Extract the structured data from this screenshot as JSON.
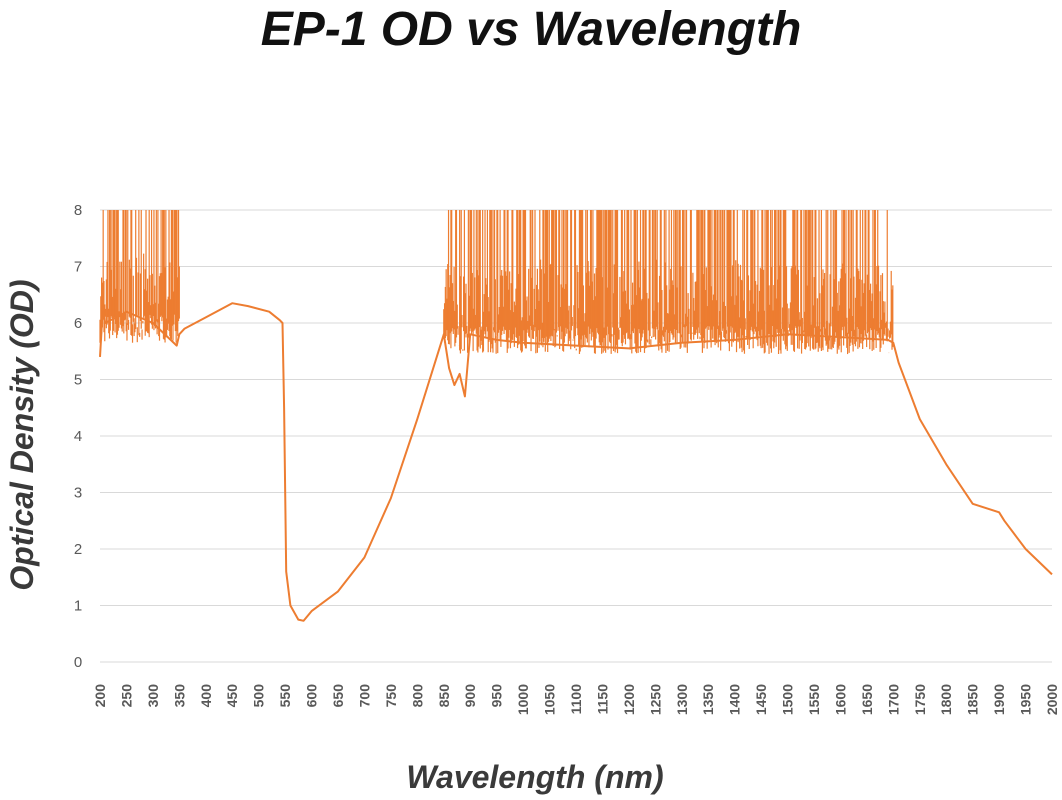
{
  "chart_data": {
    "type": "line",
    "title": "EP-1 OD vs Wavelength",
    "xlabel": "Wavelength (nm)",
    "ylabel": "Optical Density (OD)",
    "xlim": [
      200,
      2000
    ],
    "ylim": [
      0,
      8
    ],
    "x_ticks": [
      "200",
      "250",
      "300",
      "350",
      "400",
      "450",
      "500",
      "550",
      "600",
      "650",
      "700",
      "750",
      "800",
      "850",
      "900",
      "950",
      "1000",
      "1050",
      "1100",
      "1150",
      "1200",
      "1250",
      "1300",
      "1350",
      "1400",
      "1450",
      "1500",
      "1550",
      "1600",
      "1650",
      "1700",
      "1750",
      "1800",
      "1850",
      "1900",
      "1950",
      "2000"
    ],
    "y_ticks": [
      "0",
      "1",
      "2",
      "3",
      "4",
      "5",
      "6",
      "7",
      "8"
    ],
    "grid": "horizontal",
    "colors": {
      "series": "#ed7d31",
      "grid": "#d9d9d9",
      "tick_text": "#595959"
    },
    "series": [
      {
        "noise_regions": [
          {
            "x": [
              200,
              350
            ],
            "floor": 5.9,
            "spikes_to": 8
          },
          {
            "x": [
              850,
              1700
            ],
            "floor": 5.7,
            "spikes_to": 8
          }
        ],
        "x": [
          200,
          205,
          210,
          250,
          300,
          345,
          350,
          360,
          400,
          450,
          480,
          520,
          540,
          545,
          548,
          552,
          560,
          575,
          585,
          600,
          650,
          700,
          750,
          800,
          840,
          850,
          860,
          870,
          880,
          890,
          900,
          950,
          1000,
          1100,
          1200,
          1300,
          1400,
          1500,
          1600,
          1690,
          1700,
          1710,
          1750,
          1800,
          1850,
          1900,
          1910,
          1950,
          2000
        ],
        "y": [
          5.4,
          6.2,
          6.0,
          6.2,
          6.0,
          5.6,
          5.8,
          5.9,
          6.1,
          6.35,
          6.3,
          6.2,
          6.05,
          6.0,
          4.5,
          1.6,
          1.0,
          0.75,
          0.73,
          0.9,
          1.25,
          1.85,
          2.9,
          4.3,
          5.5,
          5.8,
          5.2,
          4.9,
          5.1,
          4.7,
          5.8,
          5.7,
          5.65,
          5.6,
          5.55,
          5.65,
          5.7,
          5.8,
          5.75,
          5.7,
          5.65,
          5.3,
          4.3,
          3.5,
          2.8,
          2.65,
          2.5,
          2.0,
          1.55
        ]
      }
    ]
  }
}
